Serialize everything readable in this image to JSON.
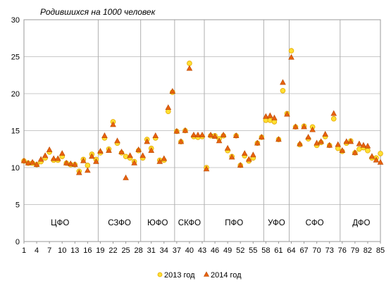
{
  "chart_data": {
    "type": "scatter",
    "title": "Родившихся на 1000 человек",
    "xlabel": "",
    "ylabel": "",
    "ylim": [
      0,
      30
    ],
    "xlim": [
      1,
      85
    ],
    "y_ticks": [
      "0",
      "5",
      "10",
      "15",
      "20",
      "25",
      "30"
    ],
    "x_ticks": [
      "1",
      "4",
      "7",
      "10",
      "13",
      "16",
      "19",
      "22",
      "25",
      "28",
      "31",
      "34",
      "37",
      "40",
      "43",
      "46",
      "49",
      "52",
      "55",
      "58",
      "61",
      "64",
      "67",
      "70",
      "73",
      "76",
      "79",
      "82",
      "85"
    ],
    "grid": true,
    "legend_position": "bottom",
    "region_dividers": [
      18.5,
      28.5,
      36.5,
      43.5,
      57.5,
      63.5,
      75.5
    ],
    "regions": [
      {
        "label": "ЦФО",
        "x": 9.5
      },
      {
        "label": "СЗФО",
        "x": 23.5
      },
      {
        "label": "ЮФО",
        "x": 32.5
      },
      {
        "label": "СКФО",
        "x": 40
      },
      {
        "label": "ПФО",
        "x": 50.5
      },
      {
        "label": "УФО",
        "x": 60.5
      },
      {
        "label": "СФО",
        "x": 69.5
      },
      {
        "label": "ДФО",
        "x": 80.5
      }
    ],
    "series": [
      {
        "name": "2013 год",
        "color": "#FFE033",
        "values": [
          10.9,
          10.6,
          10.6,
          10.4,
          10.8,
          11.3,
          12.1,
          11.0,
          11.0,
          11.5,
          10.6,
          10.4,
          10.4,
          9.5,
          11.1,
          10.3,
          11.8,
          11.1,
          12.0,
          14.0,
          12.5,
          16.2,
          13.3,
          12.0,
          11.5,
          11.3,
          10.8,
          12.3,
          11.3,
          13.8,
          12.6,
          14.0,
          11.0,
          11.0,
          17.6,
          20.2,
          14.9,
          13.5,
          15.0,
          24.1,
          14.2,
          14.1,
          14.2,
          10.0,
          14.3,
          14.3,
          13.9,
          14.3,
          12.3,
          11.5,
          14.3,
          10.3,
          11.6,
          10.9,
          11.3,
          13.3,
          14.1,
          16.4,
          16.4,
          16.2,
          13.8,
          20.4,
          17.3,
          25.8,
          15.5,
          13.1,
          15.6,
          13.9,
          15.5,
          13.0,
          13.4,
          14.2,
          13.0,
          16.6,
          12.6,
          12.2,
          13.3,
          13.6,
          12.0,
          12.5,
          12.7,
          12.3,
          11.3,
          11.3,
          11.9
        ]
      },
      {
        "name": "2014 год",
        "color": "#E8610E",
        "values": [
          10.9,
          10.6,
          10.7,
          10.4,
          11.1,
          11.6,
          12.4,
          11.2,
          11.2,
          11.9,
          10.6,
          10.5,
          10.4,
          9.3,
          10.9,
          9.6,
          11.5,
          10.8,
          12.2,
          14.3,
          12.3,
          15.8,
          13.6,
          12.1,
          8.6,
          11.6,
          10.6,
          12.4,
          11.6,
          13.5,
          12.3,
          14.3,
          10.8,
          11.2,
          18.1,
          20.3,
          14.9,
          13.5,
          15.0,
          23.4,
          14.4,
          14.4,
          14.4,
          9.8,
          14.4,
          14.2,
          13.6,
          14.4,
          12.6,
          11.4,
          14.3,
          10.3,
          11.9,
          11.1,
          11.7,
          13.3,
          14.1,
          16.9,
          17.0,
          16.7,
          13.8,
          21.5,
          17.2,
          24.9,
          15.5,
          13.2,
          15.5,
          14.1,
          15.1,
          13.3,
          13.5,
          14.5,
          13.0,
          17.3,
          13.1,
          12.3,
          13.5,
          13.5,
          12.0,
          13.2,
          13.0,
          12.9,
          11.5,
          11.0,
          10.7
        ]
      }
    ]
  }
}
